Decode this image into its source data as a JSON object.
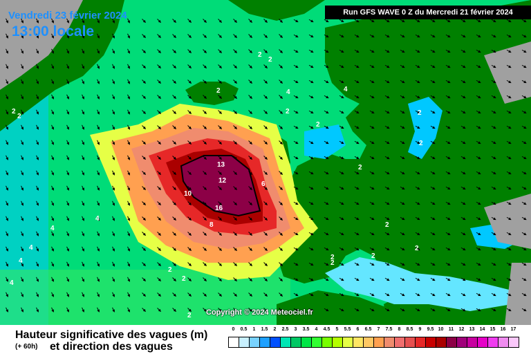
{
  "header": {
    "date": "Vendredi 23 février 2024",
    "hour": "13:00 locale",
    "run": "Run GFS WAVE 0 Z du Mercredi 21 février 2024"
  },
  "copyright": "Copyright © 2024 Meteociel.fr",
  "legend": {
    "title": "Hauteur significative des vagues (m)",
    "offset": "(+ 60h)",
    "subtitle": "et direction des vagues",
    "ticks": [
      "0",
      "0.5",
      "1",
      "1.5",
      "2",
      "2.5",
      "3",
      "3.5",
      "4",
      "4.5",
      "5",
      "5.5",
      "6",
      "6.5",
      "7",
      "7.5",
      "8",
      "8.5",
      "9",
      "9.5",
      "10",
      "11",
      "12",
      "13",
      "14",
      "15",
      "16",
      "17"
    ],
    "colors": [
      "#ffffff",
      "#c8f0ff",
      "#78d2ff",
      "#1ea0ff",
      "#0050ff",
      "#00e6b4",
      "#00c864",
      "#00e646",
      "#32ff32",
      "#78ff00",
      "#b4ff00",
      "#e6ff46",
      "#ffe664",
      "#ffc864",
      "#ffa050",
      "#f08c6e",
      "#f06e6e",
      "#e65050",
      "#e62828",
      "#c80000",
      "#aa0000",
      "#8c0046",
      "#a0007a",
      "#c800a0",
      "#e600c8",
      "#f03cf0",
      "#f08cf0",
      "#fac8fa"
    ]
  },
  "map_labels": [
    "2",
    "2",
    "2",
    "2",
    "2",
    "2",
    "2",
    "2",
    "2",
    "2",
    "2",
    "2",
    "2",
    "2",
    "2",
    "2",
    "2",
    "2",
    "4",
    "4",
    "4",
    "4",
    "4",
    "4",
    "4",
    "8",
    "10",
    "12",
    "13",
    "16",
    "6"
  ],
  "colors": {
    "land": "#008000",
    "ice": "#a0a0a0",
    "sea_low": "#00c8ff",
    "sea_mid": "#00e6b4",
    "sea_green": "#00dc64",
    "peak": "#8c0046"
  }
}
